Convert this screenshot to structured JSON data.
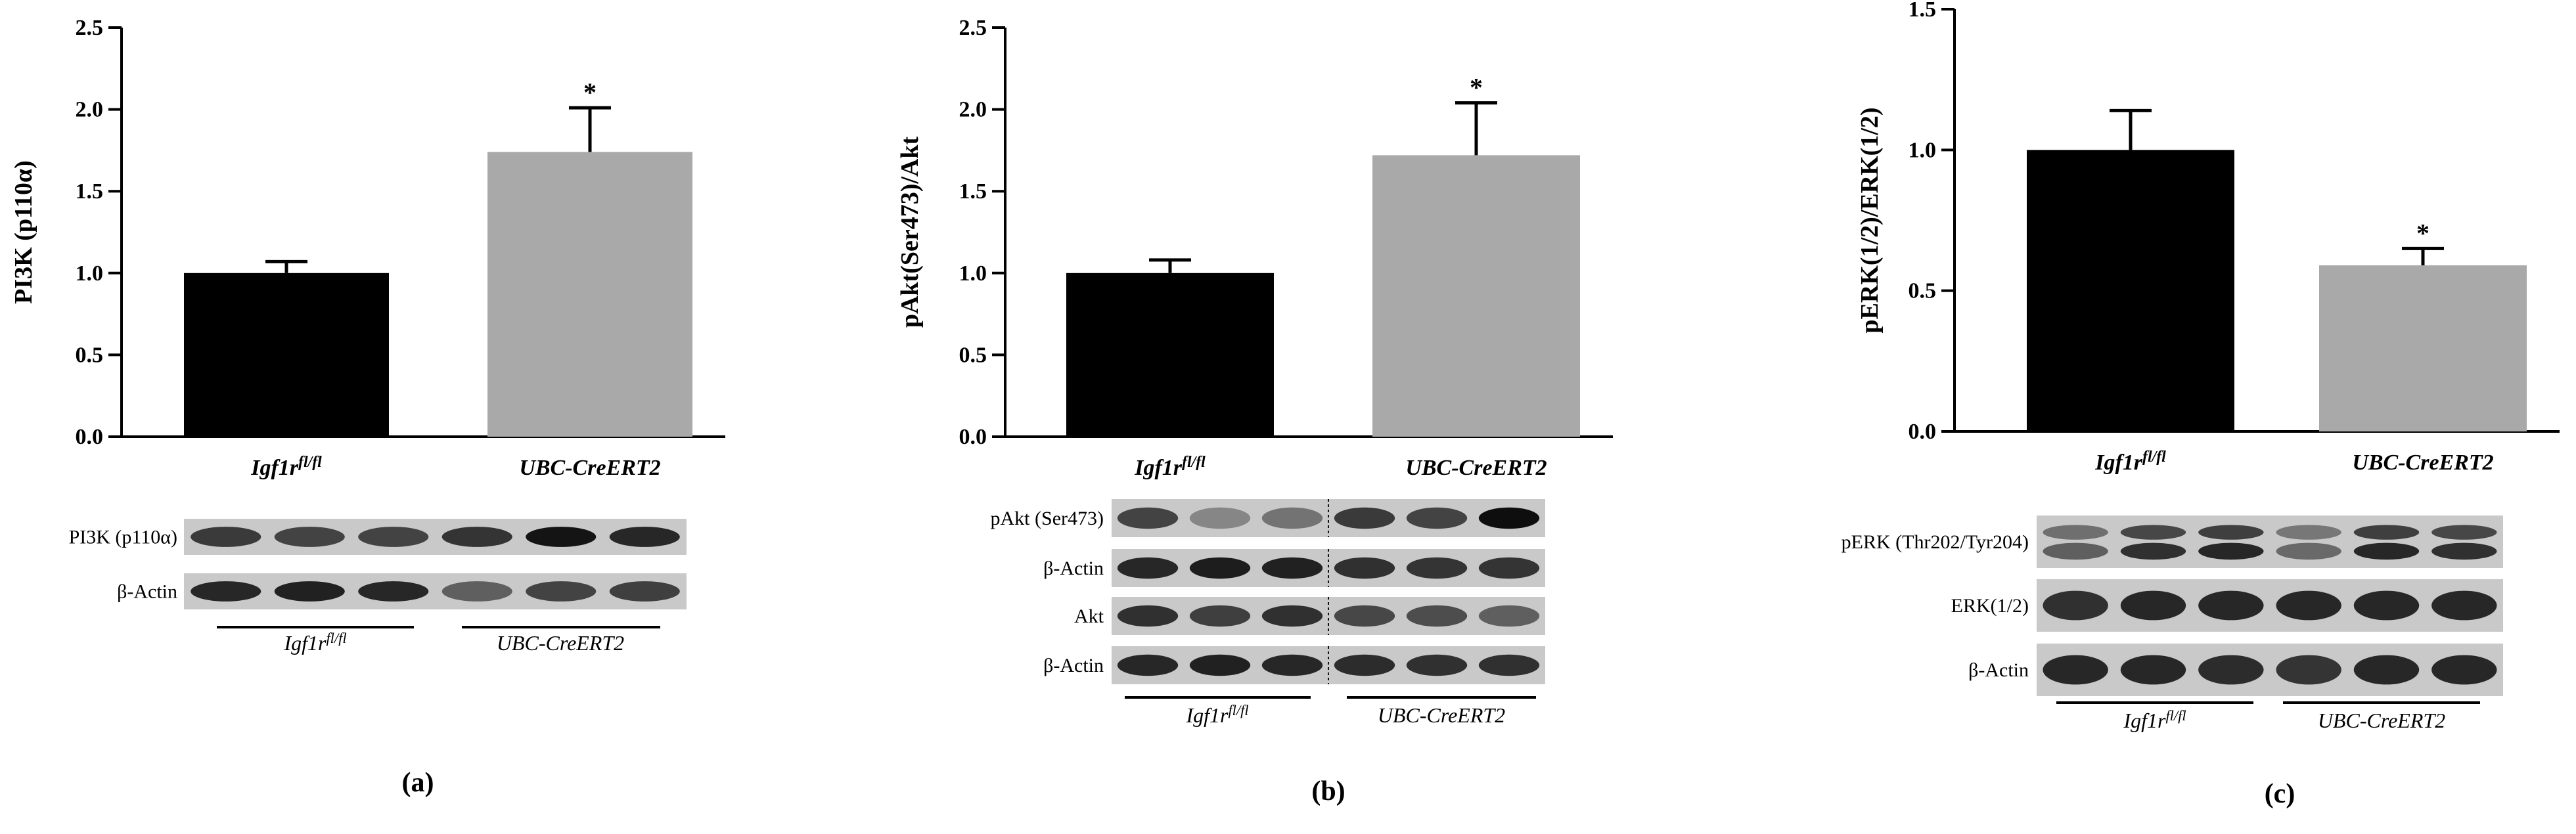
{
  "colors": {
    "control": "#000000",
    "knockout": "#a9a9a9",
    "axis": "#000000"
  },
  "panels": [
    {
      "letter": "(a)",
      "blot_labels": [
        "PI3K (p110α)",
        "β-Actin"
      ],
      "group_labels": [
        "Igf1r",
        "UBC-CreERT2"
      ],
      "group_sup": "fl/fl"
    },
    {
      "letter": "(b)",
      "blot_labels": [
        "pAkt (Ser473)",
        "β-Actin",
        "Akt",
        "β-Actin"
      ],
      "group_labels": [
        "Igf1r",
        "UBC-CreERT2"
      ],
      "group_sup": "fl/fl"
    },
    {
      "letter": "(c)",
      "blot_labels": [
        "pERK (Thr202/Tyr204)",
        "ERK(1/2)",
        "β-Actin"
      ],
      "group_labels": [
        "Igf1r",
        "UBC-CreERT2"
      ],
      "group_sup": "fl/fl"
    }
  ],
  "chart_data": [
    {
      "type": "bar",
      "ylabel": "PI3K (p110α)",
      "categories": [
        "Igf1r",
        "UBC-CreERT2"
      ],
      "category_sup": "fl/fl",
      "values": [
        1.0,
        1.74
      ],
      "errors": [
        0.07,
        0.27
      ],
      "significance": [
        "",
        "*"
      ],
      "ylim": [
        0,
        2.5
      ],
      "yticks": [
        "0.0",
        "0.5",
        "1.0",
        "1.5",
        "2.0",
        "2.5"
      ]
    },
    {
      "type": "bar",
      "ylabel": "pAkt(Ser473)/Akt",
      "categories": [
        "Igf1r",
        "UBC-CreERT2"
      ],
      "category_sup": "fl/fl",
      "values": [
        1.0,
        1.72
      ],
      "errors": [
        0.08,
        0.32
      ],
      "significance": [
        "",
        "*"
      ],
      "ylim": [
        0,
        2.5
      ],
      "yticks": [
        "0.0",
        "0.5",
        "1.0",
        "1.5",
        "2.0",
        "2.5"
      ]
    },
    {
      "type": "bar",
      "ylabel": "pERK(1/2)/ERK(1/2)",
      "categories": [
        "Igf1r",
        "UBC-CreERT2"
      ],
      "category_sup": "fl/fl",
      "values": [
        1.0,
        0.59
      ],
      "errors": [
        0.14,
        0.06
      ],
      "significance": [
        "",
        "*"
      ],
      "ylim": [
        0,
        1.5
      ],
      "yticks": [
        "0.0",
        "0.5",
        "1.0",
        "1.5"
      ]
    }
  ]
}
